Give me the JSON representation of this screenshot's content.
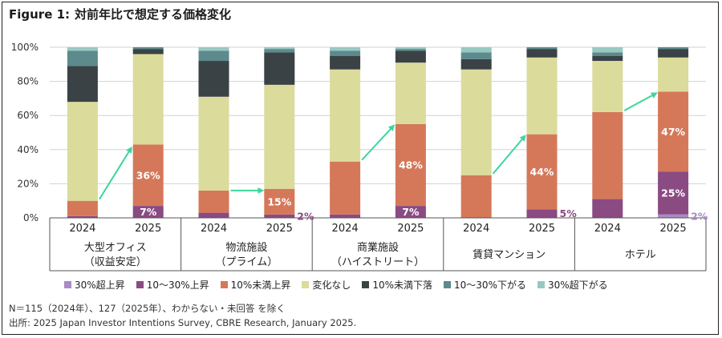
{
  "figure": {
    "label": "Figure 1:",
    "title": "対前年比で想定する価格変化"
  },
  "colors": {
    "rise30plus": "#a98bc6",
    "rise10to30": "#8a4a82",
    "rise10less": "#d5785a",
    "nochange": "#dbdb9c",
    "fall10less": "#3a4245",
    "fall10to30": "#5d8a8c",
    "fall30plus": "#97c9c1",
    "arrow": "#3ed69a",
    "grid": "#d2d2d2",
    "axis_text": "#333333"
  },
  "chart_data": {
    "type": "bar",
    "stacked": true,
    "ylim": [
      0,
      100
    ],
    "yticks": [
      "0%",
      "20%",
      "40%",
      "60%",
      "80%",
      "100%"
    ],
    "groups": [
      {
        "name_line1": "大型オフィス",
        "name_line2": "（収益安定）"
      },
      {
        "name_line1": "物流施設",
        "name_line2": "（プライム）"
      },
      {
        "name_line1": "商業施設",
        "name_line2": "（ハイストリート）"
      },
      {
        "name_line1": "賃貸マンション",
        "name_line2": ""
      },
      {
        "name_line1": "ホテル",
        "name_line2": ""
      }
    ],
    "years": [
      "2024",
      "2025"
    ],
    "series_keys": [
      "rise30plus",
      "rise10to30",
      "rise10less",
      "nochange",
      "fall10less",
      "fall10to30",
      "fall30plus"
    ],
    "series": [
      {
        "name": "30%超上昇",
        "key": "rise30plus",
        "values": [
          0,
          0,
          0,
          0,
          0,
          0,
          0,
          0,
          0,
          2
        ]
      },
      {
        "name": "10～30%上昇",
        "key": "rise10to30",
        "values": [
          1,
          7,
          3,
          2,
          2,
          7,
          0,
          5,
          11,
          25
        ]
      },
      {
        "name": "10%未満上昇",
        "key": "rise10less",
        "values": [
          9,
          36,
          13,
          15,
          31,
          48,
          25,
          44,
          51,
          47
        ]
      },
      {
        "name": "変化なし",
        "key": "nochange",
        "values": [
          58,
          53,
          55,
          61,
          54,
          36,
          62,
          45,
          30,
          20
        ]
      },
      {
        "name": "10%未満下落",
        "key": "fall10less",
        "values": [
          21,
          3,
          21,
          19,
          8,
          7,
          6,
          5,
          3,
          5
        ]
      },
      {
        "name": "10～30%下がる",
        "key": "fall10to30",
        "values": [
          9,
          1,
          6,
          2,
          3,
          1,
          4,
          1,
          2,
          1
        ]
      },
      {
        "name": "30%超下がる",
        "key": "fall30plus",
        "values": [
          2,
          0,
          2,
          1,
          2,
          1,
          3,
          0,
          3,
          0
        ]
      }
    ],
    "annotations": [
      {
        "bar": 1,
        "series": "rise10less",
        "text": "36%",
        "position": "inside"
      },
      {
        "bar": 1,
        "series": "rise10to30",
        "text": "7%",
        "position": "inside"
      },
      {
        "bar": 3,
        "series": "rise10less",
        "text": "15%",
        "position": "inside"
      },
      {
        "bar": 3,
        "series": "rise10to30",
        "text": "2%",
        "position": "right"
      },
      {
        "bar": 5,
        "series": "rise10less",
        "text": "48%",
        "position": "inside"
      },
      {
        "bar": 5,
        "series": "rise10to30",
        "text": "7%",
        "position": "inside"
      },
      {
        "bar": 7,
        "series": "rise10less",
        "text": "44%",
        "position": "inside"
      },
      {
        "bar": 7,
        "series": "rise10to30",
        "text": "5%",
        "position": "right"
      },
      {
        "bar": 9,
        "series": "rise10less",
        "text": "47%",
        "position": "inside"
      },
      {
        "bar": 9,
        "series": "rise10to30",
        "text": "25%",
        "position": "inside"
      },
      {
        "bar": 9,
        "series": "rise30plus",
        "text": "2%",
        "position": "right"
      }
    ],
    "arrows": [
      {
        "from_bar": 0,
        "to_bar": 1,
        "from_value": 10,
        "to_value": 42
      },
      {
        "from_bar": 2,
        "to_bar": 3,
        "from_value": 16,
        "to_value": 16
      },
      {
        "from_bar": 4,
        "to_bar": 5,
        "from_value": 33,
        "to_value": 55
      },
      {
        "from_bar": 6,
        "to_bar": 7,
        "from_value": 25,
        "to_value": 49
      },
      {
        "from_bar": 8,
        "to_bar": 9,
        "from_value": 62,
        "to_value": 74
      }
    ]
  },
  "legend": [
    {
      "label": "30%超上昇",
      "color": "#a98bc6"
    },
    {
      "label": "10～30%上昇",
      "color": "#8a4a82"
    },
    {
      "label": "10%未満上昇",
      "color": "#d5785a"
    },
    {
      "label": "変化なし",
      "color": "#dbdb9c"
    },
    {
      "label": "10%未満下落",
      "color": "#3a4245"
    },
    {
      "label": "10～30%下がる",
      "color": "#5d8a8c"
    },
    {
      "label": "30%超下がる",
      "color": "#97c9c1"
    }
  ],
  "notes": {
    "sample": "N＝115（2024年）、127（2025年）、わからない・未回答 を除く",
    "source": "出所: 2025 Japan Investor Intentions Survey, CBRE Research, January 2025."
  }
}
